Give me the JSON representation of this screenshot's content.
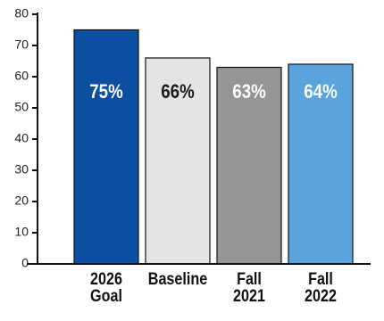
{
  "chart_data": {
    "type": "bar",
    "categories": [
      "2026 Goal",
      "Baseline",
      "Fall 2021",
      "Fall 2022"
    ],
    "values": [
      75,
      66,
      63,
      64
    ],
    "value_labels": [
      "75%",
      "66%",
      "63%",
      "64%"
    ],
    "colors": [
      "#0b4ea2",
      "#e4e4e6",
      "#959595",
      "#5aa3dc"
    ],
    "label_colors": [
      "#ffffff",
      "#1a1a1a",
      "#ffffff",
      "#ffffff"
    ],
    "ylim": [
      0,
      80
    ],
    "yticks": [
      0,
      10,
      20,
      30,
      40,
      50,
      60,
      70,
      80
    ],
    "grid": false
  }
}
